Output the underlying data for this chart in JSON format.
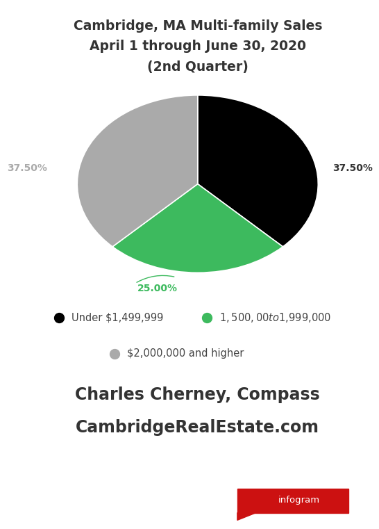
{
  "title_line1": "Cambridge, MA Multi-family Sales",
  "title_line2": "April 1 through June 30, 2020",
  "title_line3": "(2nd Quarter)",
  "slices": [
    37.5,
    25.0,
    37.5
  ],
  "colors": [
    "#000000",
    "#3dba5e",
    "#aaaaaa"
  ],
  "labels": [
    "37.50%",
    "25.00%",
    "37.50%"
  ],
  "label_colors": [
    "#333333",
    "#3dba5e",
    "#aaaaaa"
  ],
  "legend_labels": [
    "Under $1,499,999",
    "$1,500,00 to $1,999,000",
    "$2,000,000 and higher"
  ],
  "legend_colors": [
    "#000000",
    "#3dba5e",
    "#aaaaaa"
  ],
  "footer_line1": "Charles Cherney, Compass",
  "footer_line2": "CambridgeRealEstate.com",
  "bg_color": "#ffffff",
  "title_color": "#333333",
  "footer_color": "#333333",
  "infogram_bg": "#cc1111",
  "infogram_text": "infogram",
  "start_angle": 90,
  "pct_label_fontsize": 10,
  "title_fontsize": 13.5,
  "legend_fontsize": 10.5,
  "footer_fontsize": 17
}
